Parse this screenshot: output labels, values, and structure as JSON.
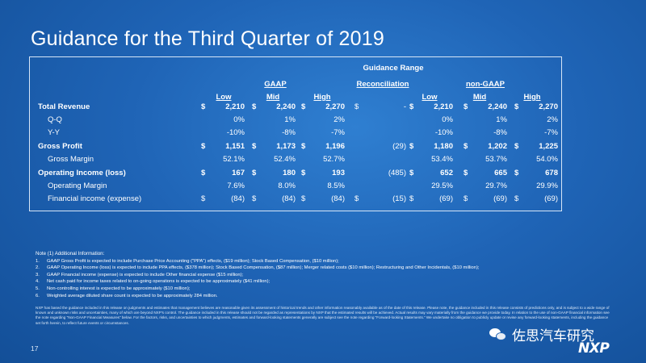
{
  "title": "Guidance for the Third Quarter of 2019",
  "table": {
    "group_header": "Guidance Range",
    "section_headers": {
      "gaap": "GAAP",
      "reconciliation": "Reconciliation",
      "non_gaap": "non-GAAP"
    },
    "sub_headers": {
      "low": "Low",
      "mid": "Mid",
      "high": "High"
    },
    "currency": "$",
    "rows": [
      {
        "label": "Total Revenue",
        "bold": true,
        "indent": false,
        "gaap_low": "2,210",
        "gaap_mid": "2,240",
        "gaap_high": "2,270",
        "recon": "-",
        "ng_low": "2,210",
        "ng_mid": "2,240",
        "ng_high": "2,270",
        "gaap_cur": true,
        "recon_cur": true,
        "ng_cur": true
      },
      {
        "label": "Q-Q",
        "bold": false,
        "indent": true,
        "gaap_low": "0%",
        "gaap_mid": "1%",
        "gaap_high": "2%",
        "recon": "",
        "ng_low": "0%",
        "ng_mid": "1%",
        "ng_high": "2%",
        "gaap_cur": false,
        "recon_cur": false,
        "ng_cur": false
      },
      {
        "label": "Y-Y",
        "bold": false,
        "indent": true,
        "gaap_low": "-10%",
        "gaap_mid": "-8%",
        "gaap_high": "-7%",
        "recon": "",
        "ng_low": "-10%",
        "ng_mid": "-8%",
        "ng_high": "-7%",
        "gaap_cur": false,
        "recon_cur": false,
        "ng_cur": false
      },
      {
        "label": "Gross Profit",
        "bold": true,
        "indent": false,
        "gaap_low": "1,151",
        "gaap_mid": "1,173",
        "gaap_high": "1,196",
        "recon": "(29)",
        "ng_low": "1,180",
        "ng_mid": "1,202",
        "ng_high": "1,225",
        "gaap_cur": true,
        "recon_cur": false,
        "ng_cur": true
      },
      {
        "label": "Gross Margin",
        "bold": false,
        "indent": true,
        "gaap_low": "52.1%",
        "gaap_mid": "52.4%",
        "gaap_high": "52.7%",
        "recon": "",
        "ng_low": "53.4%",
        "ng_mid": "53.7%",
        "ng_high": "54.0%",
        "gaap_cur": false,
        "recon_cur": false,
        "ng_cur": false
      },
      {
        "label": "Operating Income (loss)",
        "bold": true,
        "indent": false,
        "gaap_low": "167",
        "gaap_mid": "180",
        "gaap_high": "193",
        "recon": "(485)",
        "ng_low": "652",
        "ng_mid": "665",
        "ng_high": "678",
        "gaap_cur": true,
        "recon_cur": false,
        "ng_cur": true
      },
      {
        "label": "Operating Margin",
        "bold": false,
        "indent": true,
        "gaap_low": "7.6%",
        "gaap_mid": "8.0%",
        "gaap_high": "8.5%",
        "recon": "",
        "ng_low": "29.5%",
        "ng_mid": "29.7%",
        "ng_high": "29.9%",
        "gaap_cur": false,
        "recon_cur": false,
        "ng_cur": false
      },
      {
        "label": "Financial income (expense)",
        "bold": false,
        "indent": true,
        "gaap_low": "(84)",
        "gaap_mid": "(84)",
        "gaap_high": "(84)",
        "recon": "(15)",
        "ng_low": "(69)",
        "ng_mid": "(69)",
        "ng_high": "(69)",
        "gaap_cur": true,
        "recon_cur": true,
        "ng_cur": true
      }
    ]
  },
  "notes": {
    "heading": "Note (1) Additional Information:",
    "items": [
      {
        "num": "1.",
        "text": "GAAP Gross Profit is expected to include Purchase Price Accounting (\"PPA\") effects, ($19 million); Stock Based Compensation, ($10 million);"
      },
      {
        "num": "2.",
        "text": "GAAP Operating Income (loss) is expected to include PPA effects, ($378 million); Stock Based Compensation, ($87 million); Merger related costs ($10 million); Restructuring and Other Incidentals, ($10 million);"
      },
      {
        "num": "3.",
        "text": "GAAP Financial income (expense) is expected to include Other financial expense ($15 million);"
      },
      {
        "num": "4.",
        "text": "Net cash paid for income taxes related to on-going operations is expected to be approximately ($41 million);"
      },
      {
        "num": "5.",
        "text": "Non-controlling interest is expected to be approximately ($10 million);"
      },
      {
        "num": "6.",
        "text": "Weighted average diluted share count is expected to be approximately 284 million."
      }
    ]
  },
  "disclaimer": "NXP has based the guidance included in this release on judgments and estimates that management believes are reasonable given its assessment of historical trends and other information reasonably available as of the date of this release. Please note, the guidance included in this release consists of predictions only, and is subject to a wide range of known and unknown risks and uncertainties, many of which are beyond NXP's control. The guidance included in this release should not be regarded as representations by NXP that the estimated results will be achieved. Actual results may vary materially from the guidance we provide today. In relation to the use of non-GAAP financial information see the note regarding \"Non-GAAP Financial Measures\" below. For the factors, risks, and uncertainties to which judgments, estimates and forward-looking statements generally are subject see the note regarding \"Forward-looking Statements.\" We undertake no obligation to publicly update or revise any forward-looking statements, including the guidance set forth herein, to reflect future events or circumstances.",
  "page_number": "17",
  "watermark_text": "佐思汽车研究",
  "logo_text": "NXP",
  "colors": {
    "background": "#1f64b6",
    "text": "#ffffff",
    "border": "#d7e6f7"
  }
}
